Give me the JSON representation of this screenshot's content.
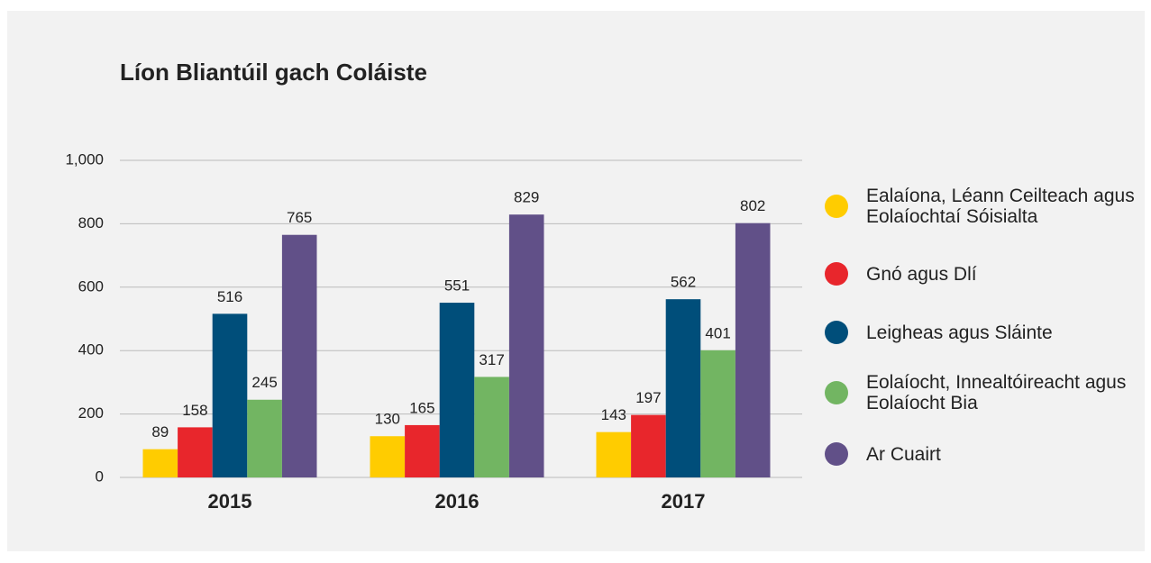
{
  "chart_data": {
    "type": "bar",
    "title": "Líon Bliantúil gach Coláiste",
    "categories": [
      "2015",
      "2016",
      "2017"
    ],
    "series": [
      {
        "name": "Ealaíona, Léann Ceilteach agus Eolaíochtaí Sóisialta",
        "color": "#ffcc00",
        "values": [
          89,
          130,
          143
        ]
      },
      {
        "name": "Gnó agus Dlí",
        "color": "#e8262c",
        "values": [
          158,
          165,
          197
        ]
      },
      {
        "name": "Leigheas agus Sláinte",
        "color": "#004e7a",
        "values": [
          516,
          551,
          562
        ]
      },
      {
        "name": "Eolaíocht, Innealtóireacht agus Eolaíocht Bia",
        "color": "#72b562",
        "values": [
          245,
          317,
          401
        ]
      },
      {
        "name": "Ar Cuairt",
        "color": "#615088",
        "values": [
          765,
          829,
          802
        ]
      }
    ],
    "ylim": [
      0,
      1000
    ],
    "yticks": [
      0,
      200,
      400,
      600,
      800,
      {
        "value": 1000,
        "label": "1,000"
      }
    ],
    "grid": true,
    "legend": "right"
  }
}
